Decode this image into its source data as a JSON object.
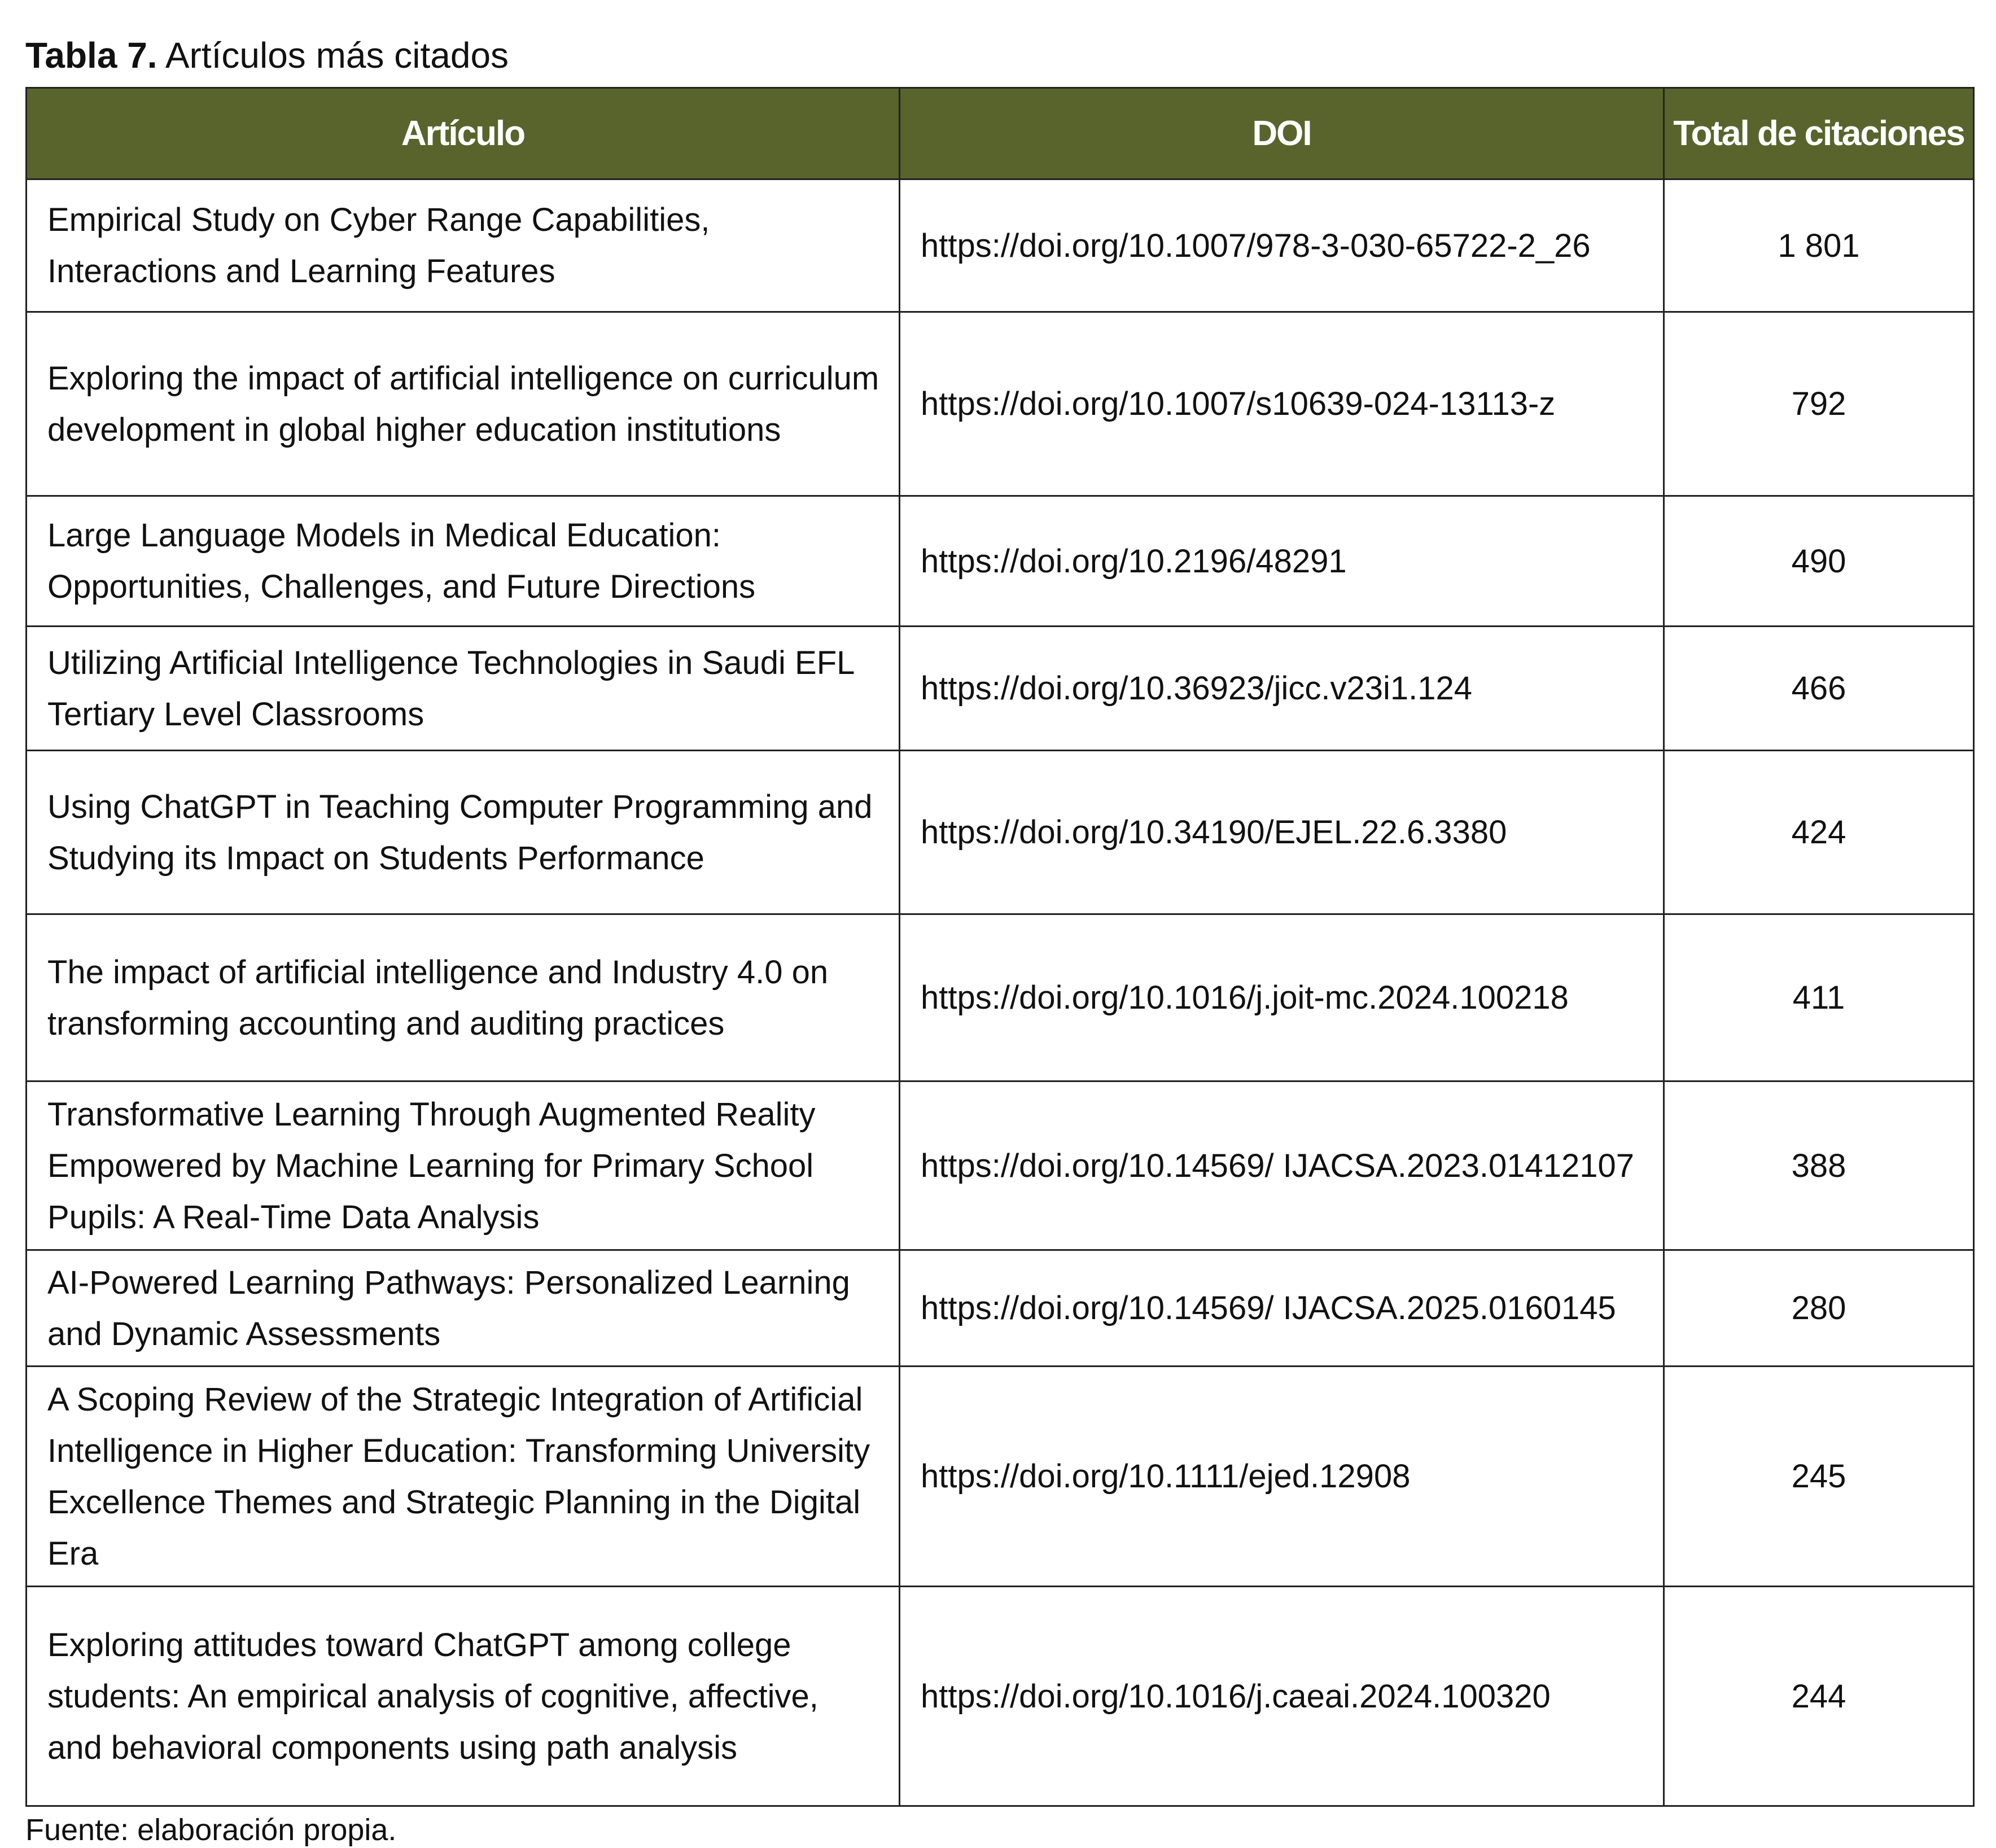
{
  "caption": {
    "label": "Tabla 7.",
    "title": "Artículos más citados"
  },
  "table": {
    "headers": [
      "Artículo",
      "DOI",
      "Total de citaciones"
    ],
    "rows": [
      [
        "Empirical Study on Cyber Range Capabilities, Interactions and Learning Features",
        "https://doi.org/10.1007/978-3-030-65722-2_26",
        "1 801"
      ],
      [
        "Exploring the impact of artificial intelligence on curriculum development in global higher education institutions",
        "https://doi.org/10.1007/s10639-024-13113-z",
        "792"
      ],
      [
        "Large Language Models in Medical Education: Opportunities, Challenges, and Future Directions",
        "https://doi.org/10.2196/48291",
        "490"
      ],
      [
        "Utilizing Artificial Intelligence Technologies in Saudi EFL Tertiary Level Classrooms",
        "https://doi.org/10.36923/jicc.v23i1.124",
        "466"
      ],
      [
        "Using ChatGPT in Teaching Computer Programming and Studying its Impact on Students Performance",
        "https://doi.org/10.34190/EJEL.22.6.3380",
        "424"
      ],
      [
        "The impact of artificial intelligence and Industry 4.0 on transforming accounting and auditing practices",
        "https://doi.org/10.1016/j.joit-mc.2024.100218",
        "411"
      ],
      [
        "Transformative Learning Through Augmented Reality Empowered by Machine Learning for Primary School Pupils: A Real-Time Data Analysis",
        "https://doi.org/10.14569/ IJACSA.2023.01412107",
        "388"
      ],
      [
        "AI-Powered Learning Pathways: Personalized Learning and Dynamic Assessments",
        "https://doi.org/10.14569/ IJACSA.2025.0160145",
        "280"
      ],
      [
        "A Scoping Review of the Strategic Integration of Artificial Intelligence in Higher Education: Transforming University Excellence Themes and Strategic Planning in the Digital Era",
        "https://doi.org/10.1111/ejed.12908",
        "245"
      ],
      [
        "Exploring attitudes toward ChatGPT among college students: An empirical analysis of cognitive, affective, and behavioral components using path analysis",
        "https://doi.org/10.1016/j.caeai.2024.100320",
        "244"
      ]
    ]
  },
  "source": "Fuente: elaboración propia."
}
